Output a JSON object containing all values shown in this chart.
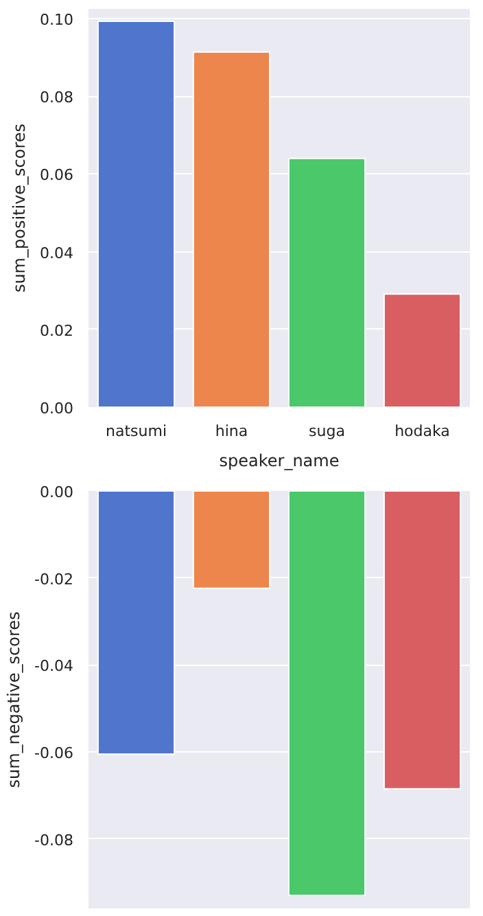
{
  "chart_data": [
    {
      "type": "bar",
      "xlabel": "speaker_name",
      "ylabel": "sum_positive_scores",
      "categories": [
        "natsumi",
        "hina",
        "suga",
        "hodaka"
      ],
      "values": [
        0.0993,
        0.0914,
        0.064,
        0.0291
      ],
      "colors": [
        "#4f76cc",
        "#ec864c",
        "#4ac86a",
        "#d85e62"
      ],
      "ylim": [
        0,
        0.1025
      ],
      "yticks": [
        {
          "value": 0,
          "label": "0.00"
        },
        {
          "value": 0.02,
          "label": "0.02"
        },
        {
          "value": 0.04,
          "label": "0.04"
        },
        {
          "value": 0.06,
          "label": "0.06"
        },
        {
          "value": 0.08,
          "label": "0.08"
        },
        {
          "value": 0.1,
          "label": "0.10"
        }
      ],
      "grid": "y"
    },
    {
      "type": "bar",
      "ylabel": "sum_negative_scores",
      "categories": [
        null,
        null,
        null,
        null
      ],
      "values": [
        -0.0605,
        -0.0224,
        -0.093,
        -0.0685
      ],
      "colors": [
        "#4f76cc",
        "#ec864c",
        "#4ac86a",
        "#d85e62"
      ],
      "ylim": [
        -0.096,
        0
      ],
      "yticks": [
        {
          "value": -0.08,
          "label": "-0.08"
        },
        {
          "value": -0.06,
          "label": "-0.06"
        },
        {
          "value": -0.04,
          "label": "-0.04"
        },
        {
          "value": -0.02,
          "label": "-0.02"
        },
        {
          "value": 0,
          "label": "0.00"
        }
      ],
      "grid": "y",
      "tick_labels": "y"
    }
  ]
}
